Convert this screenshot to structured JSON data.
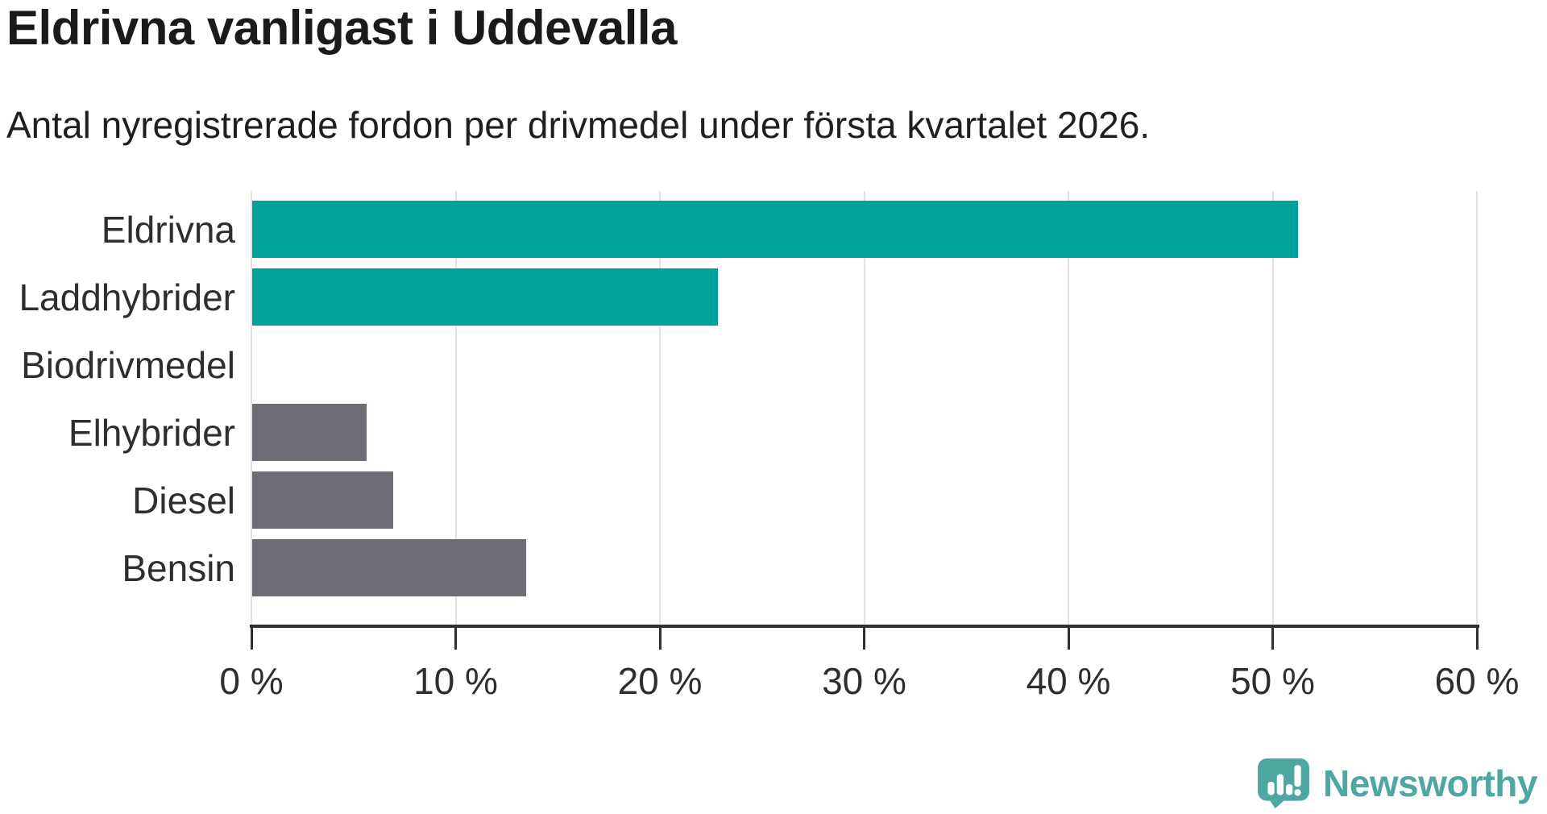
{
  "page": {
    "background": "#ffffff"
  },
  "header": {
    "title": "Eldrivna vanligast i Uddevalla",
    "subtitle": "Antal nyregistrerade fordon per drivmedel under första kvartalet 2026."
  },
  "chart_data": {
    "type": "bar",
    "orientation": "horizontal",
    "title": "Eldrivna vanligast i Uddevalla",
    "subtitle": "Antal nyregistrerade fordon per drivmedel under första kvartalet 2026.",
    "categories": [
      "Eldrivna",
      "Laddhybrider",
      "Biodrivmedel",
      "Elhybrider",
      "Diesel",
      "Bensin"
    ],
    "values": [
      51.2,
      22.8,
      0,
      5.6,
      6.9,
      13.4
    ],
    "unit": "%",
    "xlim": [
      0,
      60
    ],
    "x_ticks": [
      0,
      10,
      20,
      30,
      40,
      50,
      60
    ],
    "x_tick_labels": [
      "0 %",
      "10 %",
      "20 %",
      "30 %",
      "40 %",
      "50 %",
      "60 %"
    ],
    "grid": "vertical-light-gray",
    "legend": "none",
    "bar_colors": [
      "#00A29A",
      "#00A29A",
      "#00A29A",
      "#6E6C75",
      "#6E6C75",
      "#6E6C75"
    ],
    "colors": {
      "electric_group": "#00A29A",
      "fossil_group": "#6E6C75"
    }
  },
  "branding": {
    "logo_text": "Newsworthy",
    "logo_color": "#4FA7A1"
  }
}
